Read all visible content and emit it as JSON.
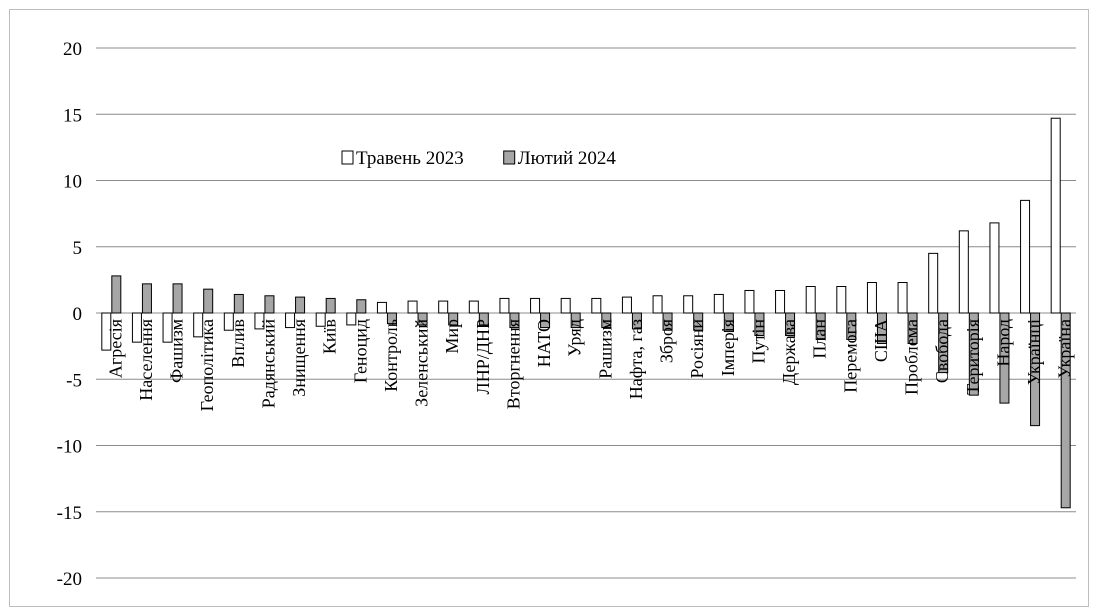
{
  "chart_data": {
    "type": "bar",
    "categories": [
      "Агресія",
      "Населення",
      "Фашизм",
      "Геополітика",
      "Вплив",
      "Радянський",
      "Знищення",
      "Київ",
      "Геноцид",
      "Контроль",
      "Зеленський",
      "Мир",
      "ЛНР/ДНР",
      "Вторгнення",
      "НАТО",
      "Уряд",
      "Рашизм",
      "Нафта, газ",
      "Зброя",
      "Росіяни",
      "Імперія",
      "Путін",
      "Держава",
      "План",
      "Перемога",
      "США",
      "Проблема",
      "Свобода",
      "Територія",
      "Народ",
      "Українці",
      "Україна"
    ],
    "series": [
      {
        "name": "Травень 2023",
        "color": "#ffffff",
        "values": [
          -2.8,
          -2.2,
          -2.2,
          -1.8,
          -1.3,
          -1.2,
          -1.1,
          -1.0,
          -0.9,
          0.8,
          0.9,
          0.9,
          0.9,
          1.1,
          1.1,
          1.1,
          1.1,
          1.2,
          1.3,
          1.3,
          1.4,
          1.7,
          1.7,
          2.0,
          2.0,
          2.3,
          2.3,
          4.5,
          6.2,
          6.8,
          8.5,
          14.7
        ]
      },
      {
        "name": "Лютий 2024",
        "color": "#a6a6a6",
        "values": [
          2.8,
          2.2,
          2.2,
          1.8,
          1.4,
          1.3,
          1.2,
          1.1,
          1.0,
          -0.8,
          -0.9,
          -0.9,
          -0.9,
          -1.1,
          -1.1,
          -1.1,
          -1.1,
          -1.2,
          -1.3,
          -1.3,
          -1.4,
          -1.7,
          -1.7,
          -2.0,
          -2.0,
          -2.3,
          -2.3,
          -4.5,
          -6.2,
          -6.8,
          -8.5,
          -14.7
        ]
      }
    ],
    "yticks": [
      "20",
      "15",
      "10",
      "5",
      "0",
      "-5",
      "-10",
      "-15",
      "-20"
    ],
    "ylim": [
      -20,
      20
    ],
    "grid": true,
    "legend": "top-center"
  }
}
